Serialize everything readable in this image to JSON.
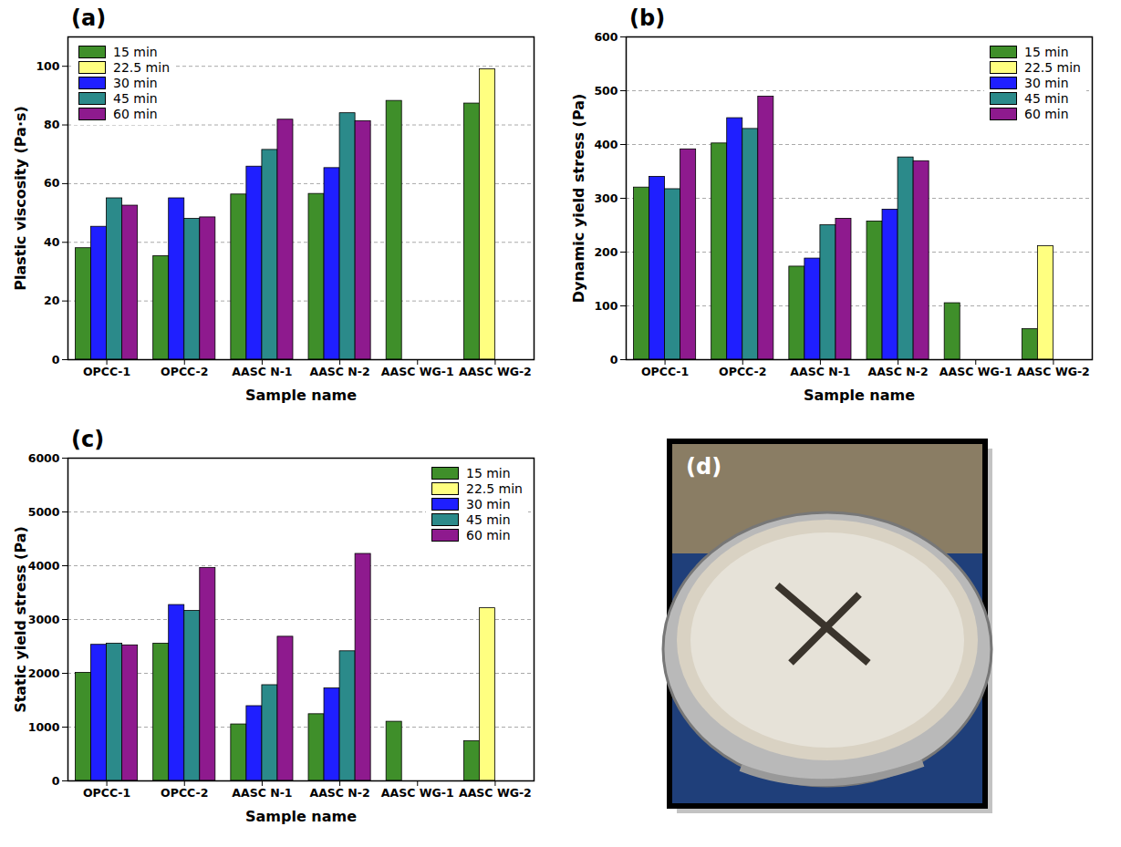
{
  "chart_data": [
    {
      "type": "bar",
      "title": "(a)",
      "x_label": "Sample name",
      "y_label": "Plastic viscosity (Pa·s)",
      "categories": [
        "OPCC-1",
        "OPCC-2",
        "AASC N-1",
        "AASC N-2",
        "AASC WG-1",
        "AASC WG-2"
      ],
      "series": [
        {
          "name": "15 min",
          "color": "#3f8f2a",
          "values": [
            38,
            35.3,
            56.3,
            56.5,
            88.2,
            87.3
          ]
        },
        {
          "name": "22.5 min",
          "color": "#ffff80",
          "values": [
            null,
            null,
            null,
            null,
            null,
            99
          ]
        },
        {
          "name": "30 min",
          "color": "#1f1fff",
          "values": [
            45.3,
            55,
            65.8,
            65.3,
            null,
            null
          ]
        },
        {
          "name": "45 min",
          "color": "#2b8a8a",
          "values": [
            55,
            48,
            71.5,
            84,
            null,
            null
          ]
        },
        {
          "name": "60 min",
          "color": "#8e1a8e",
          "values": [
            52.5,
            48.5,
            81.8,
            81.3,
            null,
            null
          ]
        }
      ],
      "ylim": [
        0,
        110
      ],
      "yticks": [
        0,
        20,
        40,
        60,
        80,
        100
      ],
      "grid": true,
      "legend": "upper left"
    },
    {
      "type": "bar",
      "title": "(b)",
      "x_label": "Sample name",
      "y_label": "Dynamic yield stress (Pa)",
      "categories": [
        "OPCC-1",
        "OPCC-2",
        "AASC N-1",
        "AASC N-2",
        "AASC WG-1",
        "AASC WG-2"
      ],
      "series": [
        {
          "name": "15 min",
          "color": "#3f8f2a",
          "values": [
            320,
            402,
            173,
            257,
            105,
            57
          ]
        },
        {
          "name": "22.5 min",
          "color": "#ffff80",
          "values": [
            null,
            null,
            null,
            null,
            null,
            211
          ]
        },
        {
          "name": "30 min",
          "color": "#1f1fff",
          "values": [
            340,
            449,
            188,
            279,
            null,
            null
          ]
        },
        {
          "name": "45 min",
          "color": "#2b8a8a",
          "values": [
            317,
            429,
            250,
            376,
            null,
            null
          ]
        },
        {
          "name": "60 min",
          "color": "#8e1a8e",
          "values": [
            391,
            489,
            262,
            369,
            null,
            null
          ]
        }
      ],
      "ylim": [
        0,
        600
      ],
      "yticks": [
        0,
        100,
        200,
        300,
        400,
        500,
        600
      ],
      "grid": true,
      "legend": "upper right"
    },
    {
      "type": "bar",
      "title": "(c)",
      "x_label": "Sample name",
      "y_label": "Static yield stress (Pa)",
      "categories": [
        "OPCC-1",
        "OPCC-2",
        "AASC N-1",
        "AASC N-2",
        "AASC WG-1",
        "AASC WG-2"
      ],
      "series": [
        {
          "name": "15 min",
          "color": "#3f8f2a",
          "values": [
            2010,
            2550,
            1050,
            1240,
            1100,
            740
          ]
        },
        {
          "name": "22.5 min",
          "color": "#ffff80",
          "values": [
            null,
            null,
            null,
            null,
            null,
            3210
          ]
        },
        {
          "name": "30 min",
          "color": "#1f1fff",
          "values": [
            2530,
            3270,
            1390,
            1720,
            null,
            null
          ]
        },
        {
          "name": "45 min",
          "color": "#2b8a8a",
          "values": [
            2550,
            3160,
            1780,
            2410,
            null,
            null
          ]
        },
        {
          "name": "60 min",
          "color": "#8e1a8e",
          "values": [
            2520,
            3960,
            2680,
            4220,
            null,
            null
          ]
        }
      ],
      "ylim": [
        0,
        6000
      ],
      "yticks": [
        0,
        1000,
        2000,
        3000,
        4000,
        5000,
        6000
      ],
      "grid": true,
      "legend": "upper right"
    }
  ],
  "image": {
    "label": "(d)"
  }
}
